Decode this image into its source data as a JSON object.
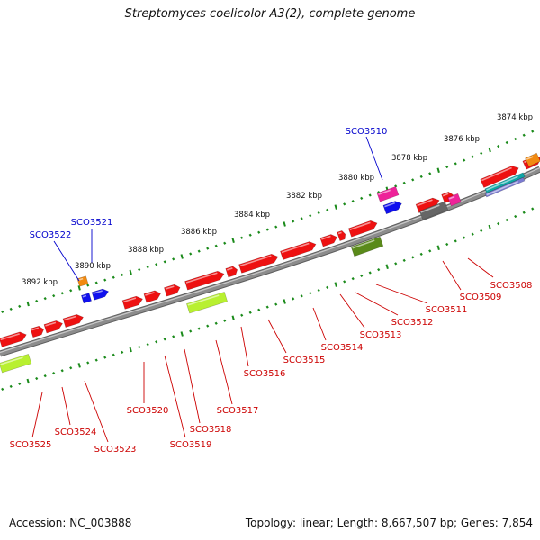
{
  "title": "Streptomyces coelicolor A3(2), complete genome",
  "footer": {
    "accession": "Accession: NC_003888",
    "summary": "Topology: linear; Length: 8,667,507 bp; Genes: 7,854"
  },
  "colors": {
    "backbone": "#8c8c8c",
    "red": "#ee1111",
    "blue": "#1010ee",
    "orange": "#f28a10",
    "olive": "#5a8a1a",
    "lime": "#b8f030",
    "pink": "#ee2299",
    "gray": "#666666",
    "teal": "#10a6a6",
    "ticks": "#1a8a1a",
    "label_red": "#cc0000",
    "label_blue": "#0000cc"
  },
  "kbp_labels": [
    "3874 kbp",
    "3876 kbp",
    "3878 kbp",
    "3880 kbp",
    "3882 kbp",
    "3884 kbp",
    "3886 kbp",
    "3888 kbp",
    "3890 kbp",
    "3892 kbp"
  ],
  "gene_labels_top": [
    "SCO3510",
    "SCO3521",
    "SCO3522"
  ],
  "gene_labels_bottom": [
    "SCO3508",
    "SCO3509",
    "SCO3511",
    "SCO3512",
    "SCO3513",
    "SCO3514",
    "SCO3515",
    "SCO3516",
    "SCO3517",
    "SCO3518",
    "SCO3519",
    "SCO3520",
    "SCO3523",
    "SCO3524",
    "SCO3525"
  ]
}
